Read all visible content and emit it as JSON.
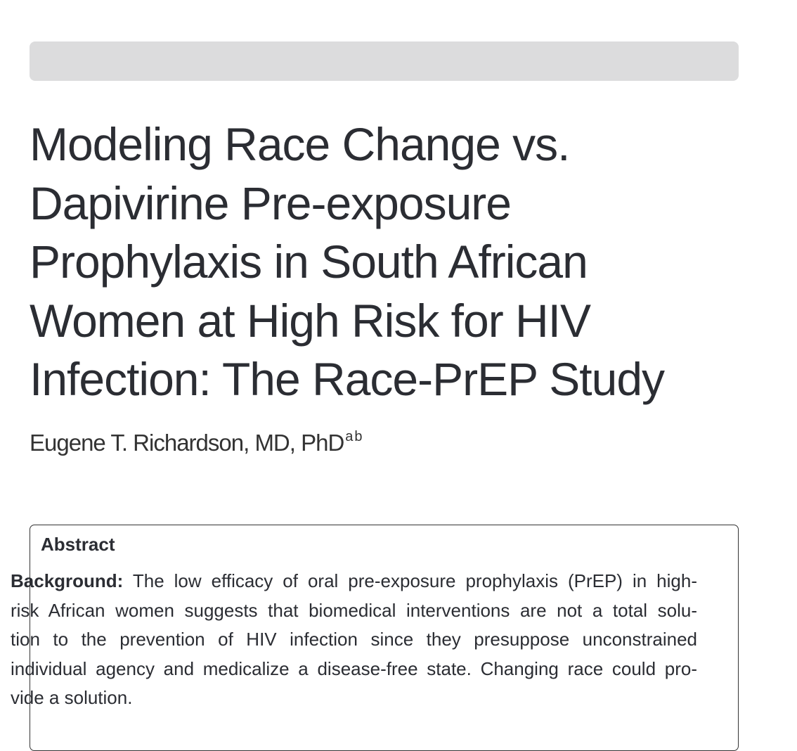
{
  "title_lines": [
    "Modeling Race Change vs.",
    "Dapivirine Pre-exposure",
    "Prophylaxis in South African",
    "Women at High Risk for HIV",
    "Infection: The Race-PrEP Study"
  ],
  "author": {
    "name": "Eugene T. Richardson, MD, PhD",
    "affiliations": [
      "a",
      "b"
    ]
  },
  "abstract": {
    "heading": "Abstract",
    "background": {
      "label": "Background:",
      "lines": [
        " The low efficacy of oral pre-exposure prophylaxis (PrEP) in high-",
        "risk African women suggests that biomedical interventions are not a total solu-",
        "tion to the prevention of HIV infection since they presuppose unconstrained",
        "individual agency and medicalize a disease-free state. Changing race could pro-",
        "vide a solution."
      ]
    }
  }
}
